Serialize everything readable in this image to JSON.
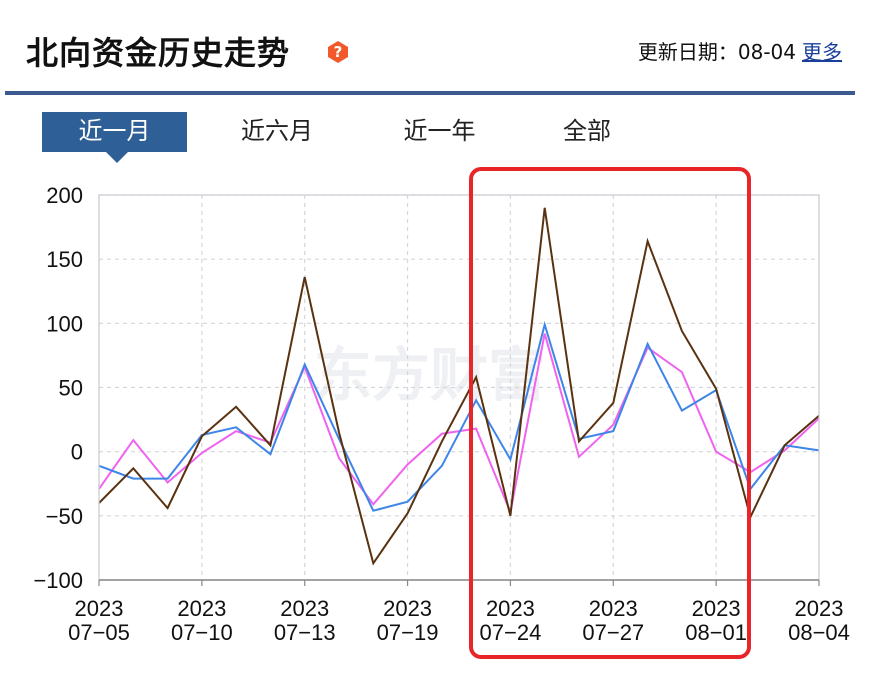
{
  "header": {
    "title": "北向资金历史走势",
    "update_label": "更新日期：",
    "update_value": "08-04",
    "more_label": "更多"
  },
  "tabs": [
    {
      "label": "近一月",
      "active": true
    },
    {
      "label": "近六月",
      "active": false
    },
    {
      "label": "近一年",
      "active": false
    },
    {
      "label": "全部",
      "active": false
    }
  ],
  "watermark": "东方财富",
  "colors": {
    "brand": "#2e5f96",
    "highlight": "#e8262a",
    "series_brown": "#5a3210",
    "series_blue": "#3d86e8",
    "series_magenta": "#f062f0"
  },
  "chart_data": {
    "type": "line",
    "ylim": [
      -100,
      200
    ],
    "y_ticks": [
      "200",
      "150",
      "100",
      "50",
      "0",
      "−50",
      "−100"
    ],
    "x_tick_labels": [
      [
        "2023",
        "07−05"
      ],
      [
        "2023",
        "07−10"
      ],
      [
        "2023",
        "07−13"
      ],
      [
        "2023",
        "07−19"
      ],
      [
        "2023",
        "07−24"
      ],
      [
        "2023",
        "07−27"
      ],
      [
        "2023",
        "08−01"
      ],
      [
        "2023",
        "08−04"
      ]
    ],
    "x_tick_positions": [
      0,
      3,
      6,
      9,
      12,
      15,
      18,
      21
    ],
    "x_count": 22,
    "grid": true,
    "series": [
      {
        "color": "#5a3210",
        "values": [
          -40,
          -13,
          -44,
          12,
          35,
          5,
          136,
          15,
          -87,
          -48,
          8,
          58,
          -50,
          190,
          8,
          38,
          164,
          94,
          49,
          -51,
          5,
          28
        ]
      },
      {
        "color": "#3d86e8",
        "values": [
          -11,
          -21,
          -21,
          13,
          19,
          -2,
          68,
          10,
          -46,
          -39,
          -11,
          40,
          -6,
          99,
          10,
          16,
          84,
          32,
          48,
          -29,
          5,
          1
        ]
      },
      {
        "color": "#f062f0",
        "values": [
          -29,
          9,
          -24,
          -1,
          16,
          7,
          66,
          -5,
          -41,
          -10,
          14,
          18,
          -47,
          92,
          -4,
          21,
          81,
          62,
          0,
          -16,
          1,
          26
        ]
      }
    ]
  }
}
